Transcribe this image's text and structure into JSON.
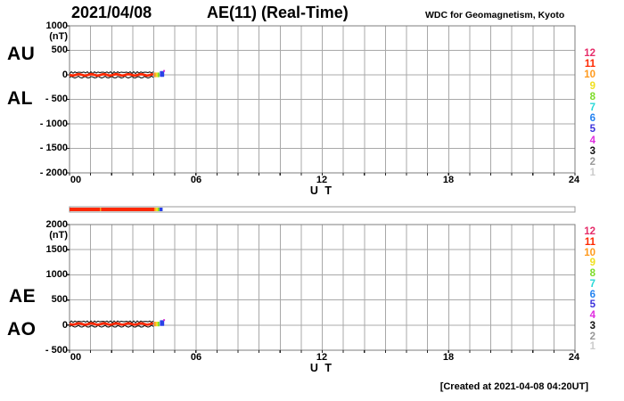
{
  "header": {
    "date": "2021/04/08",
    "title": "AE(11) (Real-Time)",
    "source": "WDC for Geomagnetism, Kyoto"
  },
  "footer": {
    "created": "[Created at 2021-04-08 04:20UT]"
  },
  "top_plot": {
    "label_upper": "AU",
    "label_lower": "AL",
    "unit": "(nT)",
    "y_ticks": [
      "1000",
      "500",
      "0",
      "- 500",
      "- 1000",
      "- 1500",
      "- 2000"
    ],
    "x_ticks": [
      "00",
      "06",
      "12",
      "18",
      "24"
    ],
    "x_axis_label": "U T"
  },
  "bottom_plot": {
    "label_upper": "AE",
    "label_lower": "AO",
    "unit": "(nT)",
    "y_ticks": [
      "2000",
      "1500",
      "1000",
      "500",
      "0",
      "- 500"
    ],
    "x_ticks": [
      "00",
      "06",
      "12",
      "18",
      "24"
    ],
    "x_axis_label": "U T"
  },
  "legend": {
    "items": [
      {
        "label": "12",
        "color": "#e62e6b"
      },
      {
        "label": "11",
        "color": "#ff2800"
      },
      {
        "label": "10",
        "color": "#ff9a1e"
      },
      {
        "label": "9",
        "color": "#f0e020"
      },
      {
        "label": "8",
        "color": "#7ddc28"
      },
      {
        "label": "7",
        "color": "#28d8d8"
      },
      {
        "label": "6",
        "color": "#2382f0"
      },
      {
        "label": "5",
        "color": "#3c32dc"
      },
      {
        "label": "4",
        "color": "#e02ee0"
      },
      {
        "label": "3",
        "color": "#111111"
      },
      {
        "label": "2",
        "color": "#999999"
      },
      {
        "label": "1",
        "color": "#cccccc"
      }
    ]
  },
  "chart_data": [
    {
      "type": "line",
      "panel": "upper",
      "title": "AU and AL indices",
      "xlabel": "U T",
      "ylabel": "(nT)",
      "xlim": [
        0,
        24
      ],
      "ylim": [
        -2000,
        1000
      ],
      "y_gridstep": 500,
      "x_gridstep_hours": 1,
      "grid": true,
      "x": [
        0,
        0.5,
        1,
        1.5,
        2,
        2.5,
        3,
        3.5,
        4,
        4.33
      ],
      "series": [
        {
          "name": "AU",
          "color": "#ff2800",
          "values": [
            10,
            12,
            8,
            11,
            9,
            7,
            10,
            13,
            11,
            9
          ]
        },
        {
          "name": "AL",
          "color": "#ff2800",
          "values": [
            -12,
            -9,
            -14,
            -10,
            -11,
            -8,
            -12,
            -9,
            -8,
            -6
          ]
        }
      ],
      "data_end_hour": 4.33,
      "end_marker_color": "#2a42e6"
    },
    {
      "type": "line",
      "panel": "lower",
      "title": "AE and AO indices",
      "xlabel": "U T",
      "ylabel": "(nT)",
      "xlim": [
        0,
        24
      ],
      "ylim": [
        -500,
        2000
      ],
      "y_gridstep": 500,
      "x_gridstep_hours": 1,
      "grid": true,
      "x": [
        0,
        0.5,
        1,
        1.5,
        2,
        2.5,
        3,
        3.5,
        4,
        4.33
      ],
      "series": [
        {
          "name": "AE",
          "color": "#ff2800",
          "values": [
            22,
            21,
            22,
            21,
            20,
            15,
            22,
            22,
            19,
            15
          ]
        },
        {
          "name": "AO",
          "color": "#ff2800",
          "values": [
            -1,
            1,
            -3,
            0,
            -1,
            0,
            -1,
            2,
            1,
            1
          ]
        }
      ],
      "data_end_hour": 4.33,
      "end_marker_color": "#2a42e6"
    },
    {
      "type": "timeline",
      "name": "station-count-bar",
      "segments": [
        {
          "from": 0,
          "to": 1.44,
          "stations": 11,
          "color": "#ff2800"
        },
        {
          "from": 1.44,
          "to": 1.5,
          "stations": 10,
          "color": "#ff9a1e"
        },
        {
          "from": 1.5,
          "to": 4.02,
          "stations": 11,
          "color": "#ff2800"
        },
        {
          "from": 4.02,
          "to": 4.1,
          "stations": 10,
          "color": "#ff9a1e"
        },
        {
          "from": 4.1,
          "to": 4.19,
          "stations": 9,
          "color": "#f0e020"
        },
        {
          "from": 4.19,
          "to": 4.27,
          "stations": 8,
          "color": "#7ddc28"
        },
        {
          "from": 4.27,
          "to": 4.42,
          "stations": 6,
          "color": "#2a42e6"
        }
      ]
    }
  ]
}
